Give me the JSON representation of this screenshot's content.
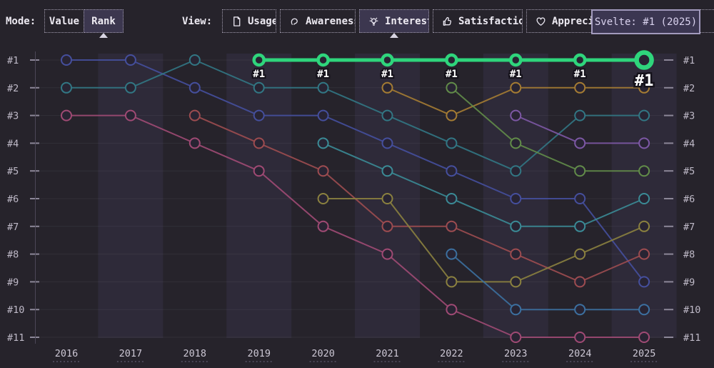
{
  "toolbar": {
    "mode_label": "Mode:",
    "view_label": "View:",
    "modes": [
      {
        "label": "Value",
        "selected": false
      },
      {
        "label": "Rank",
        "selected": true
      }
    ],
    "views": [
      {
        "label": "Usage",
        "icon": "document-icon",
        "selected": false
      },
      {
        "label": "Awareness",
        "icon": "ear-icon",
        "selected": false
      },
      {
        "label": "Interest",
        "icon": "lightbulb-icon",
        "selected": true
      },
      {
        "label": "Satisfaction",
        "icon": "thumbs-up-icon",
        "selected": false
      },
      {
        "label": "Appreciation",
        "icon": "heart-icon",
        "selected": false
      }
    ]
  },
  "tooltip": {
    "text": "Svelte: #1 (2025)"
  },
  "chart_data": {
    "type": "line",
    "subtype": "bump-rank",
    "title": "",
    "xlabel": "",
    "ylabel": "",
    "grid": "horizontal",
    "x": [
      2016,
      2017,
      2018,
      2019,
      2020,
      2021,
      2022,
      2023,
      2024,
      2025
    ],
    "x_tick_labels": [
      "2016",
      "2017",
      "2018",
      "2019",
      "2020",
      "2021",
      "2022",
      "2023",
      "2024",
      "2025"
    ],
    "rank_labels": [
      "#1",
      "#2",
      "#3",
      "#4",
      "#5",
      "#6",
      "#7",
      "#8",
      "#9",
      "#10",
      "#11"
    ],
    "ylim": [
      1,
      11
    ],
    "y_axis_inverted": true,
    "legend": "none",
    "highlight_color": "#2fd57c",
    "series": [
      {
        "name": null,
        "id": "indigo",
        "color": "#454f9d",
        "highlight": false,
        "points": [
          [
            2016,
            1
          ],
          [
            2017,
            1
          ],
          [
            2018,
            2
          ],
          [
            2019,
            3
          ],
          [
            2020,
            3
          ],
          [
            2021,
            4
          ],
          [
            2022,
            5
          ],
          [
            2023,
            6
          ],
          [
            2024,
            6
          ],
          [
            2025,
            9
          ]
        ]
      },
      {
        "name": null,
        "id": "dark-teal",
        "color": "#327784",
        "highlight": false,
        "points": [
          [
            2016,
            2
          ],
          [
            2017,
            2
          ],
          [
            2018,
            1
          ],
          [
            2019,
            2
          ],
          [
            2020,
            2
          ],
          [
            2021,
            3
          ],
          [
            2022,
            4
          ],
          [
            2023,
            5
          ],
          [
            2024,
            3
          ],
          [
            2025,
            3
          ]
        ]
      },
      {
        "name": null,
        "id": "rose",
        "color": "#a04a74",
        "highlight": false,
        "points": [
          [
            2016,
            3
          ],
          [
            2017,
            3
          ],
          [
            2018,
            4
          ],
          [
            2019,
            5
          ],
          [
            2020,
            7
          ],
          [
            2021,
            8
          ],
          [
            2022,
            10
          ],
          [
            2023,
            11
          ],
          [
            2024,
            11
          ],
          [
            2025,
            11
          ]
        ]
      },
      {
        "name": null,
        "id": "crimson",
        "color": "#9d4c50",
        "highlight": false,
        "points": [
          [
            2018,
            3
          ],
          [
            2019,
            4
          ],
          [
            2020,
            5
          ],
          [
            2021,
            7
          ],
          [
            2022,
            7
          ],
          [
            2023,
            8
          ],
          [
            2024,
            9
          ],
          [
            2025,
            8
          ]
        ]
      },
      {
        "name": null,
        "id": "sea-teal",
        "color": "#3b8b96",
        "highlight": false,
        "points": [
          [
            2020,
            4
          ],
          [
            2021,
            5
          ],
          [
            2022,
            6
          ],
          [
            2023,
            7
          ],
          [
            2024,
            7
          ],
          [
            2025,
            6
          ]
        ]
      },
      {
        "name": null,
        "id": "olive",
        "color": "#8b813f",
        "highlight": false,
        "points": [
          [
            2020,
            6
          ],
          [
            2021,
            6
          ],
          [
            2022,
            9
          ],
          [
            2023,
            9
          ],
          [
            2024,
            8
          ],
          [
            2025,
            7
          ]
        ]
      },
      {
        "name": null,
        "id": "ochre",
        "color": "#a57c33",
        "highlight": false,
        "points": [
          [
            2021,
            2
          ],
          [
            2022,
            3
          ],
          [
            2023,
            2
          ],
          [
            2024,
            2
          ],
          [
            2025,
            2
          ]
        ]
      },
      {
        "name": null,
        "id": "moss-green",
        "color": "#628c49",
        "highlight": false,
        "points": [
          [
            2022,
            2
          ],
          [
            2023,
            4
          ],
          [
            2024,
            5
          ],
          [
            2025,
            5
          ]
        ]
      },
      {
        "name": null,
        "id": "steel-blue",
        "color": "#3c70a0",
        "highlight": false,
        "points": [
          [
            2022,
            8
          ],
          [
            2023,
            10
          ],
          [
            2024,
            10
          ],
          [
            2025,
            10
          ]
        ]
      },
      {
        "name": null,
        "id": "purple",
        "color": "#7d58a5",
        "highlight": false,
        "points": [
          [
            2023,
            3
          ],
          [
            2024,
            4
          ],
          [
            2025,
            4
          ]
        ]
      },
      {
        "name": "Svelte",
        "id": "svelte",
        "color": "#2fd57c",
        "highlight": true,
        "point_label": "#1",
        "current_point_label": "#1",
        "points": [
          [
            2019,
            1
          ],
          [
            2020,
            1
          ],
          [
            2021,
            1
          ],
          [
            2022,
            1
          ],
          [
            2023,
            1
          ],
          [
            2024,
            1
          ],
          [
            2025,
            1
          ]
        ]
      }
    ]
  }
}
